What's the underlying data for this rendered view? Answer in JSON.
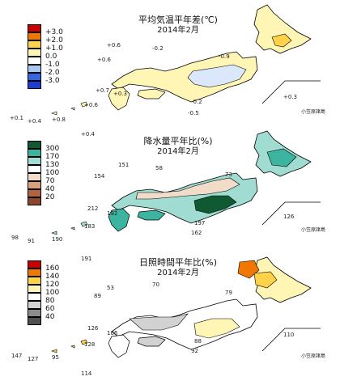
{
  "panels": [
    {
      "title": "平均気温平年差(℃)",
      "subtitle": "2014年2月",
      "legend": [
        {
          "label": "+3.0",
          "color": "#c80000"
        },
        {
          "label": "+2.0",
          "color": "#f07800"
        },
        {
          "label": "+1.0",
          "color": "#ffd24a"
        },
        {
          "label": "0.0",
          "color": "#fff5b4"
        },
        {
          "label": "-1.0",
          "color": "#ffffff"
        },
        {
          "label": "-2.0",
          "color": "#a6c8f5"
        },
        {
          "label": "-3.0",
          "color": "#3366e0"
        },
        {
          "label": "",
          "color": "#1e3cd2"
        }
      ],
      "values": [
        "+0.6",
        "-0.2",
        "-0.9",
        "+0.6",
        "+0.7",
        "+0.3",
        "-0.2",
        "-0.5",
        "+0.6",
        "+0.1",
        "+0.4",
        "+0.8",
        "+0.3"
      ],
      "island_label": "小笠原諸島"
    },
    {
      "title": "降水量平年比(%)",
      "subtitle": "2014年2月",
      "legend": [
        {
          "label": "300",
          "color": "#0f5a32"
        },
        {
          "label": "170",
          "color": "#3cb4a0"
        },
        {
          "label": "130",
          "color": "#a0dcd2"
        },
        {
          "label": "100",
          "color": "#ffffff"
        },
        {
          "label": "70",
          "color": "#f0dcc8"
        },
        {
          "label": "40",
          "color": "#dca078"
        },
        {
          "label": "20",
          "color": "#b4643c"
        },
        {
          "label": "",
          "color": "#8c4628"
        }
      ],
      "values": [
        "+0.4",
        "151",
        "58",
        "73",
        "154",
        "212",
        "192",
        "197",
        "162",
        "183",
        "98",
        "91",
        "190",
        "126"
      ],
      "island_label": "小笠原諸島"
    },
    {
      "title": "日照時間平年比(%)",
      "subtitle": "2014年2月",
      "legend": [
        {
          "label": "160",
          "color": "#c80000"
        },
        {
          "label": "140",
          "color": "#f07800"
        },
        {
          "label": "120",
          "color": "#ffd24a"
        },
        {
          "label": "100",
          "color": "#fff5b4"
        },
        {
          "label": "80",
          "color": "#ffffff"
        },
        {
          "label": "60",
          "color": "#d2d2d2"
        },
        {
          "label": "40",
          "color": "#8c8c8c"
        },
        {
          "label": "",
          "color": "#505050"
        }
      ],
      "values": [
        "191",
        "53",
        "70",
        "79",
        "89",
        "126",
        "106",
        "88",
        "92",
        "128",
        "147",
        "127",
        "95",
        "110",
        "114"
      ],
      "island_label": "小笠原諸島"
    }
  ]
}
